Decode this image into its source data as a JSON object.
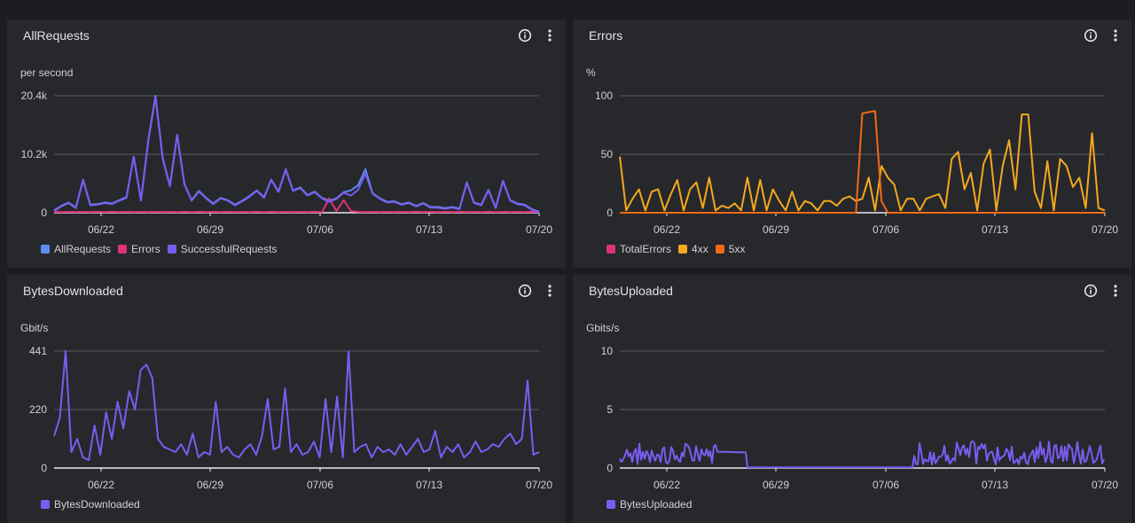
{
  "panels": [
    {
      "id": "all-requests",
      "title": "AllRequests",
      "unit": "per second",
      "legend": [
        {
          "label": "AllRequests",
          "color": "#5b8def"
        },
        {
          "label": "Errors",
          "color": "#e0317b"
        },
        {
          "label": "SuccessfulRequests",
          "color": "#7b5cf0"
        }
      ]
    },
    {
      "id": "errors",
      "title": "Errors",
      "unit": "%",
      "legend": [
        {
          "label": "TotalErrors",
          "color": "#e0317b"
        },
        {
          "label": "4xx",
          "color": "#f5a81c"
        },
        {
          "label": "5xx",
          "color": "#f26a16"
        }
      ]
    },
    {
      "id": "bytes-downloaded",
      "title": "BytesDownloaded",
      "unit": "Gbit/s",
      "legend": [
        {
          "label": "BytesDownloaded",
          "color": "#7b5cf0"
        }
      ]
    },
    {
      "id": "bytes-uploaded",
      "title": "BytesUploaded",
      "unit": "Gbits/s",
      "legend": [
        {
          "label": "BytesUploaded",
          "color": "#7b5cf0"
        }
      ]
    }
  ],
  "chart_data": [
    {
      "type": "line",
      "title": "AllRequests",
      "ylabel": "per second",
      "y_ticks": [
        "0",
        "10.2k",
        "20.4k"
      ],
      "ylim": [
        0,
        20400
      ],
      "x_ticks": [
        "06/22",
        "06/29",
        "07/06",
        "07/13",
        "07/20"
      ],
      "series": [
        {
          "name": "AllRequests",
          "color": "#5b8def",
          "values": [
            400,
            1200,
            1800,
            900,
            5800,
            1400,
            1500,
            1800,
            1600,
            2200,
            2700,
            9800,
            2200,
            12500,
            20400,
            9500,
            4700,
            13600,
            5000,
            2200,
            3800,
            2600,
            1600,
            2600,
            2200,
            1400,
            2100,
            2900,
            3900,
            2700,
            5800,
            3700,
            7600,
            3900,
            4400,
            3100,
            3700,
            2600,
            2100,
            2500,
            3600,
            3900,
            4800,
            7600,
            3400,
            2500,
            1900,
            2000,
            1500,
            1800,
            1200,
            1700,
            1000,
            1000,
            800,
            1000,
            700,
            5300,
            1800,
            1400,
            4000,
            900,
            5600,
            2200,
            1600,
            1400,
            600,
            200
          ]
        },
        {
          "name": "Errors",
          "color": "#e0317b",
          "values": [
            150,
            120,
            150,
            130,
            150,
            120,
            150,
            130,
            150,
            120,
            150,
            130,
            150,
            120,
            150,
            130,
            150,
            120,
            150,
            130,
            150,
            120,
            150,
            130,
            150,
            120,
            150,
            130,
            150,
            120,
            150,
            130,
            150,
            120,
            150,
            130,
            150,
            120,
            2500,
            300,
            2200,
            300,
            150,
            130,
            150,
            120,
            150,
            130,
            150,
            120,
            150,
            130,
            150,
            120,
            150,
            130,
            150,
            120,
            150,
            130,
            150,
            120,
            150,
            130,
            150,
            120,
            150,
            130
          ]
        },
        {
          "name": "SuccessfulRequests",
          "color": "#7b5cf0",
          "values": [
            300,
            1100,
            1700,
            800,
            5700,
            1300,
            1400,
            1700,
            1500,
            2100,
            2600,
            9700,
            2100,
            12400,
            20200,
            9400,
            4600,
            13500,
            4900,
            2100,
            3700,
            2500,
            1500,
            2500,
            2100,
            1300,
            2000,
            2800,
            3800,
            2600,
            5700,
            3600,
            7500,
            3800,
            4300,
            3000,
            3600,
            2500,
            1900,
            2400,
            3500,
            3000,
            4000,
            6800,
            3300,
            2400,
            1800,
            1900,
            1400,
            1700,
            1100,
            1600,
            900,
            900,
            700,
            900,
            600,
            5200,
            1700,
            1300,
            3900,
            800,
            5500,
            2100,
            1500,
            1300,
            500,
            100
          ]
        }
      ]
    },
    {
      "type": "line",
      "title": "Errors",
      "ylabel": "%",
      "y_ticks": [
        "0",
        "50",
        "100"
      ],
      "ylim": [
        0,
        100
      ],
      "x_ticks": [
        "06/22",
        "06/29",
        "07/06",
        "07/13",
        "07/20"
      ],
      "series": [
        {
          "name": "TotalErrors",
          "color": "#e0317b",
          "values": []
        },
        {
          "name": "4xx",
          "color": "#f5a81c",
          "values": [
            48,
            2,
            12,
            20,
            2,
            18,
            20,
            2,
            16,
            28,
            2,
            20,
            26,
            4,
            30,
            2,
            6,
            4,
            8,
            2,
            30,
            2,
            28,
            2,
            20,
            10,
            2,
            18,
            2,
            10,
            8,
            2,
            10,
            10,
            6,
            12,
            14,
            10,
            12,
            30,
            2,
            40,
            30,
            24,
            2,
            12,
            12,
            2,
            12,
            14,
            16,
            4,
            46,
            52,
            20,
            34,
            2,
            42,
            54,
            2,
            40,
            62,
            20,
            84,
            84,
            18,
            4,
            44,
            2,
            46,
            40,
            22,
            30,
            4,
            68,
            4,
            2
          ]
        },
        {
          "name": "5xx",
          "color": "#f26a16",
          "values": [
            0,
            0,
            0,
            0,
            0,
            0,
            0,
            0,
            0,
            0,
            0,
            0,
            0,
            0,
            0,
            0,
            0,
            0,
            0,
            0,
            0,
            0,
            0,
            0,
            0,
            0,
            0,
            0,
            0,
            0,
            0,
            0,
            0,
            0,
            0,
            0,
            0,
            0,
            85,
            86,
            87,
            10,
            0,
            0,
            0,
            0,
            0,
            0,
            0,
            0,
            0,
            0,
            0,
            0,
            0,
            0,
            0,
            0,
            0,
            0,
            0,
            0,
            0,
            0,
            0,
            0,
            0,
            0,
            0,
            0,
            0,
            0,
            0,
            0,
            0,
            0,
            0
          ]
        }
      ]
    },
    {
      "type": "line",
      "title": "BytesDownloaded",
      "ylabel": "Gbit/s",
      "y_ticks": [
        "0",
        "220",
        "441"
      ],
      "ylim": [
        0,
        441
      ],
      "x_ticks": [
        "06/22",
        "06/29",
        "07/06",
        "07/13",
        "07/20"
      ],
      "series": [
        {
          "name": "BytesDownloaded",
          "color": "#7b5cf0",
          "values": [
            120,
            190,
            441,
            60,
            110,
            40,
            30,
            160,
            50,
            210,
            110,
            250,
            150,
            290,
            220,
            370,
            390,
            340,
            110,
            80,
            70,
            60,
            90,
            50,
            130,
            40,
            60,
            50,
            250,
            60,
            80,
            50,
            40,
            70,
            90,
            50,
            120,
            260,
            70,
            80,
            300,
            60,
            90,
            50,
            60,
            100,
            40,
            260,
            60,
            270,
            40,
            440,
            60,
            80,
            90,
            40,
            80,
            60,
            70,
            50,
            90,
            50,
            80,
            110,
            60,
            70,
            140,
            40,
            80,
            60,
            90,
            40,
            60,
            100,
            60,
            70,
            90,
            80,
            110,
            130,
            90,
            110,
            330,
            50,
            60
          ]
        }
      ]
    },
    {
      "type": "line",
      "title": "BytesUploaded",
      "ylabel": "Gbits/s",
      "y_ticks": [
        "0",
        "5",
        "10"
      ],
      "ylim": [
        0,
        10
      ],
      "x_ticks": [
        "06/22",
        "06/29",
        "07/06",
        "07/13",
        "07/20"
      ],
      "series": [
        {
          "name": "BytesUploaded",
          "color": "#7b5cf0",
          "values": []
        }
      ]
    }
  ]
}
